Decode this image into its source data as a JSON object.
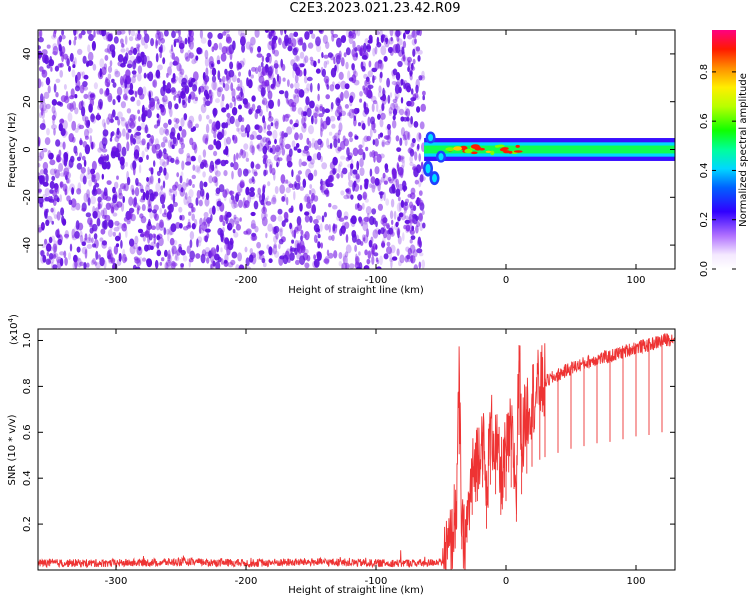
{
  "figure_title": "C2E3.2023.021.23.42.R09",
  "colors": {
    "snr_line": "#ee3333",
    "noise_purple": "#7a20e6",
    "axis": "#000000",
    "background": "#ffffff"
  },
  "chart_data": [
    {
      "type": "heatmap",
      "title": "",
      "xlabel": "Height of straight line (km)",
      "ylabel": "Frequency (Hz)",
      "xlim": [
        -360,
        130
      ],
      "ylim": [
        -50,
        50
      ],
      "x_ticks": [
        -300,
        -200,
        -100,
        0,
        100
      ],
      "x_tick_labels": [
        "-300",
        "-200",
        "-100",
        "0",
        "100"
      ],
      "y_ticks": [
        -40,
        -20,
        0,
        20,
        40
      ],
      "y_tick_labels": [
        "-40",
        "-20",
        "0",
        "20",
        "40"
      ],
      "noise_region_x": [
        -360,
        -63
      ],
      "signal": {
        "x_start": -63,
        "x_end": 130,
        "center_frequency_hz": 0,
        "half_width_hz": 3,
        "peak_amplitude_x_range": [
          -45,
          15
        ]
      },
      "grid": false,
      "colorbar": {
        "label": "Normalized spectral amplitude",
        "ticks": [
          0.0,
          0.2,
          0.4,
          0.6,
          0.8
        ],
        "tick_labels": [
          "0.0",
          "0.2",
          "0.4",
          "0.6",
          "0.8"
        ],
        "range": [
          0.0,
          0.97
        ],
        "colormap": "rainbow-white-to-magenta"
      }
    },
    {
      "type": "line",
      "title": "",
      "xlabel": "Height of straight line (km)",
      "ylabel": "SNR (10 * v/v)",
      "y_multiplier_label": "(x10",
      "y_multiplier_exp": "4",
      "y_multiplier_close": ")",
      "xlim": [
        -360,
        130
      ],
      "ylim": [
        0.0,
        1.05
      ],
      "x_ticks": [
        -300,
        -200,
        -100,
        0,
        100
      ],
      "x_tick_labels": [
        "-300",
        "-200",
        "-100",
        "0",
        "100"
      ],
      "y_ticks": [
        0.2,
        0.4,
        0.6,
        0.8,
        1.0
      ],
      "y_tick_labels": [
        "0.2",
        "0.4",
        "0.6",
        "0.8",
        "1.0"
      ],
      "grid": false,
      "series": [
        {
          "x": [
            -360,
            -300,
            -250,
            -200,
            -150,
            -100,
            -60,
            -48,
            -42,
            -38,
            -36,
            -34,
            -32,
            -30,
            -26,
            -22,
            -18,
            -15,
            -12,
            -8,
            -4,
            0,
            4,
            8,
            10,
            12,
            16,
            20,
            26,
            30,
            40,
            50,
            60,
            70,
            80,
            90,
            100,
            110,
            120,
            130
          ],
          "y": [
            0.03,
            0.03,
            0.035,
            0.03,
            0.035,
            0.03,
            0.03,
            0.04,
            0.12,
            0.3,
            0.84,
            0.15,
            0.12,
            0.2,
            0.4,
            0.5,
            0.6,
            0.3,
            0.62,
            0.55,
            0.4,
            0.5,
            0.6,
            0.35,
            0.98,
            0.55,
            0.7,
            0.75,
            0.8,
            0.82,
            0.85,
            0.88,
            0.9,
            0.92,
            0.93,
            0.95,
            0.97,
            0.98,
            1.0,
            1.01
          ]
        }
      ]
    }
  ]
}
